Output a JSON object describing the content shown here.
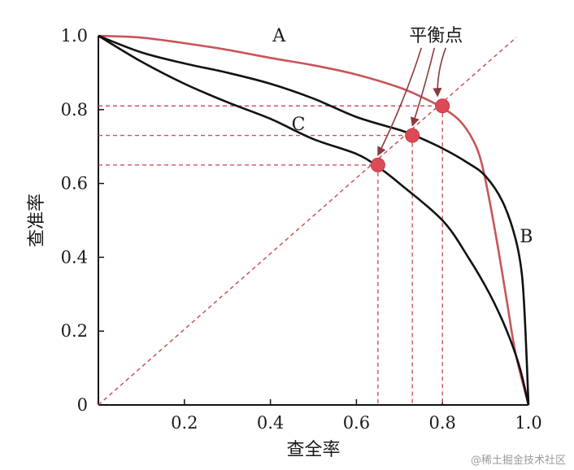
{
  "chart_data": {
    "type": "line",
    "xlabel": "查全率",
    "ylabel": "查准率",
    "xlim": [
      0,
      1
    ],
    "ylim": [
      0,
      1
    ],
    "x_ticks": [
      "0.2",
      "0.4",
      "0.6",
      "0.8",
      "1.0"
    ],
    "y_ticks": [
      "0",
      "0.2",
      "0.4",
      "0.6",
      "0.8",
      "1.0"
    ],
    "grid": false,
    "series": [
      {
        "name": "A",
        "color": "#c9545a",
        "points": [
          [
            0,
            1.0
          ],
          [
            0.1,
            0.995
          ],
          [
            0.2,
            0.98
          ],
          [
            0.3,
            0.962
          ],
          [
            0.4,
            0.94
          ],
          [
            0.5,
            0.92
          ],
          [
            0.6,
            0.895
          ],
          [
            0.7,
            0.86
          ],
          [
            0.75,
            0.835
          ],
          [
            0.8,
            0.805
          ],
          [
            0.84,
            0.77
          ],
          [
            0.87,
            0.72
          ],
          [
            0.89,
            0.66
          ],
          [
            0.91,
            0.55
          ],
          [
            0.93,
            0.42
          ],
          [
            0.95,
            0.28
          ],
          [
            0.97,
            0.14
          ],
          [
            1.0,
            0
          ]
        ]
      },
      {
        "name": "B",
        "color": "#111111",
        "points": [
          [
            0,
            1.0
          ],
          [
            0.1,
            0.955
          ],
          [
            0.2,
            0.925
          ],
          [
            0.3,
            0.9
          ],
          [
            0.4,
            0.87
          ],
          [
            0.5,
            0.83
          ],
          [
            0.6,
            0.78
          ],
          [
            0.7,
            0.745
          ],
          [
            0.735,
            0.73
          ],
          [
            0.8,
            0.695
          ],
          [
            0.86,
            0.655
          ],
          [
            0.9,
            0.62
          ],
          [
            0.94,
            0.55
          ],
          [
            0.97,
            0.45
          ],
          [
            0.985,
            0.35
          ],
          [
            0.993,
            0.2
          ],
          [
            1.0,
            0
          ]
        ]
      },
      {
        "name": "C",
        "color": "#111111",
        "points": [
          [
            0,
            1.0
          ],
          [
            0.1,
            0.93
          ],
          [
            0.2,
            0.87
          ],
          [
            0.3,
            0.82
          ],
          [
            0.4,
            0.775
          ],
          [
            0.5,
            0.72
          ],
          [
            0.6,
            0.68
          ],
          [
            0.65,
            0.645
          ],
          [
            0.7,
            0.6
          ],
          [
            0.8,
            0.5
          ],
          [
            0.86,
            0.4
          ],
          [
            0.91,
            0.3
          ],
          [
            0.95,
            0.2
          ],
          [
            0.98,
            0.1
          ],
          [
            1.0,
            0
          ]
        ]
      }
    ],
    "diagonal": {
      "from": [
        0,
        0
      ],
      "to": [
        1,
        1
      ],
      "color": "#c9545a",
      "style": "dashed"
    },
    "equilibrium_points": [
      {
        "x": 0.65,
        "y": 0.65
      },
      {
        "x": 0.73,
        "y": 0.73
      },
      {
        "x": 0.8,
        "y": 0.81
      }
    ],
    "annotation": "平衡点",
    "curve_labels": [
      {
        "text": "A",
        "x": 0.42,
        "y": 0.985
      },
      {
        "text": "B",
        "x": 0.995,
        "y": 0.44
      },
      {
        "text": "C",
        "x": 0.465,
        "y": 0.745
      }
    ]
  },
  "watermark": "@稀土掘金技术社区"
}
